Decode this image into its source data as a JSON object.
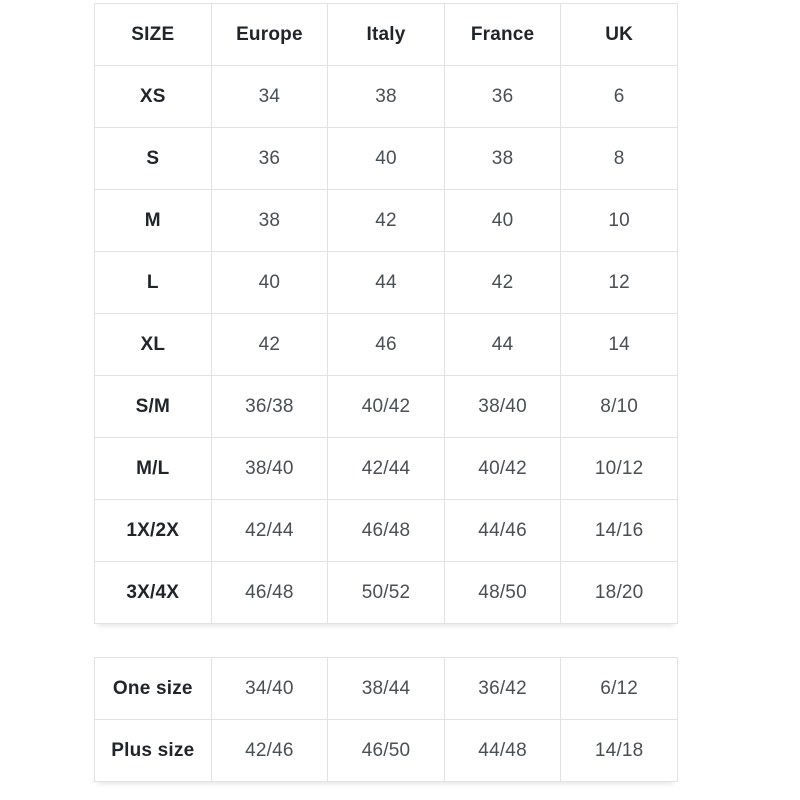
{
  "size_conversion_table": {
    "headers": [
      "SIZE",
      "Europe",
      "Italy",
      "France",
      "UK"
    ],
    "rows": [
      [
        "XS",
        "34",
        "38",
        "36",
        "6"
      ],
      [
        "S",
        "36",
        "40",
        "38",
        "8"
      ],
      [
        "M",
        "38",
        "42",
        "40",
        "10"
      ],
      [
        "L",
        "40",
        "44",
        "42",
        "12"
      ],
      [
        "XL",
        "42",
        "46",
        "44",
        "14"
      ],
      [
        "S/M",
        "36/38",
        "40/42",
        "38/40",
        "8/10"
      ],
      [
        "M/L",
        "38/40",
        "42/44",
        "40/42",
        "10/12"
      ],
      [
        "1X/2X",
        "42/44",
        "46/48",
        "44/46",
        "14/16"
      ],
      [
        "3X/4X",
        "46/48",
        "50/52",
        "48/50",
        "18/20"
      ]
    ]
  },
  "special_sizes_table": {
    "rows": [
      [
        "One size",
        "34/40",
        "38/44",
        "36/42",
        "6/12"
      ],
      [
        "Plus size",
        "42/46",
        "46/50",
        "44/48",
        "14/18"
      ]
    ]
  },
  "colors": {
    "background": "#ffffff",
    "border": "#e2e2e2",
    "header_text": "#212529",
    "data_text": "#4a4f54"
  }
}
